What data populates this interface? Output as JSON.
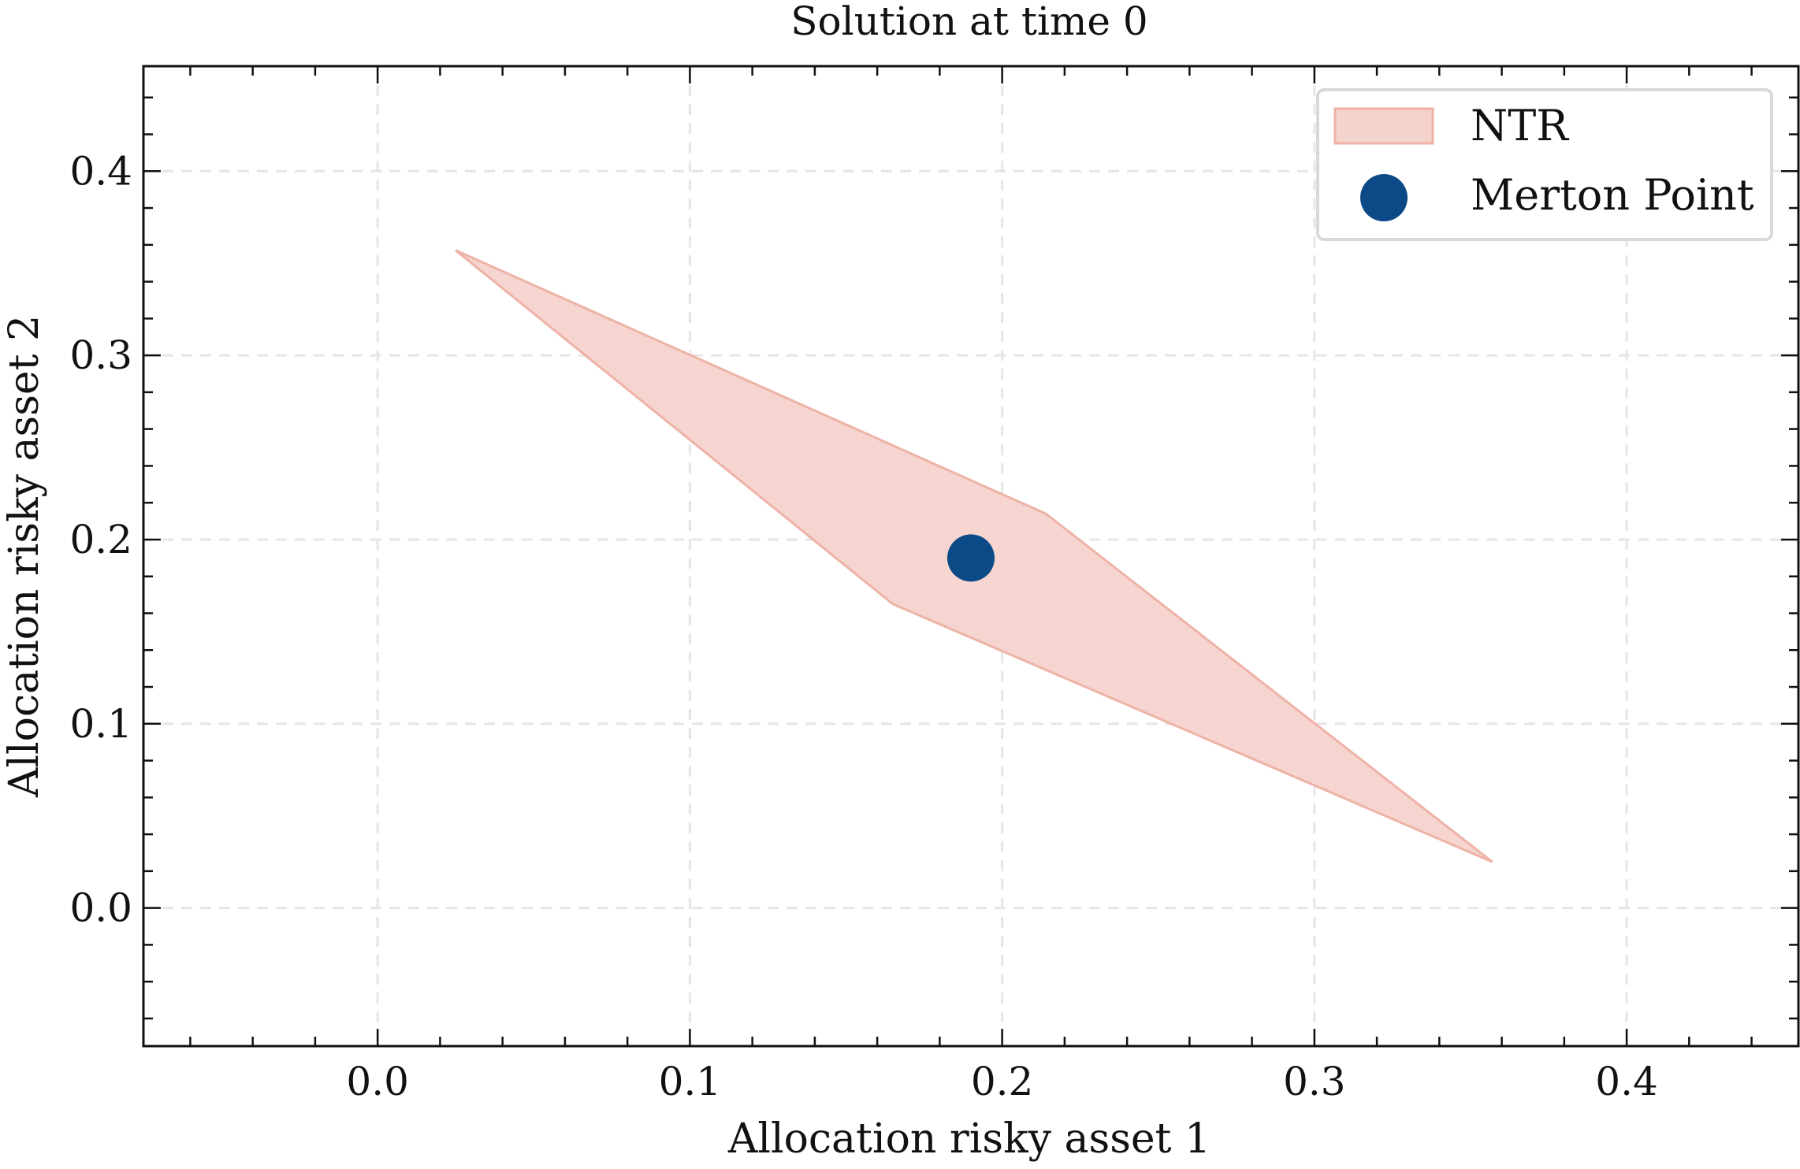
{
  "chart_data": {
    "type": "area",
    "title": "Solution at time 0",
    "xlabel": "Allocation risky asset 1",
    "ylabel": "Allocation risky asset 2",
    "xlim": [
      -0.075,
      0.455
    ],
    "ylim": [
      -0.075,
      0.457
    ],
    "x_ticks": [
      0.0,
      0.1,
      0.2,
      0.3,
      0.4
    ],
    "x_tick_labels": [
      "0.0",
      "0.1",
      "0.2",
      "0.3",
      "0.4"
    ],
    "y_ticks": [
      0.0,
      0.1,
      0.2,
      0.3,
      0.4
    ],
    "y_tick_labels": [
      "0.0",
      "0.1",
      "0.2",
      "0.3",
      "0.4"
    ],
    "minor_step": 0.02,
    "grid": true,
    "legend": {
      "placement": "top-right",
      "entries": [
        {
          "label": "NTR",
          "kind": "patch"
        },
        {
          "label": "Merton Point",
          "kind": "marker"
        }
      ]
    },
    "series": [
      {
        "name": "NTR",
        "kind": "polygon",
        "points": [
          [
            0.025,
            0.357
          ],
          [
            0.214,
            0.214
          ],
          [
            0.357,
            0.025
          ],
          [
            0.165,
            0.165
          ]
        ],
        "fill": "#f5d3cd",
        "stroke": "#eeb2a6"
      },
      {
        "name": "Merton Point",
        "kind": "point",
        "x": 0.19,
        "y": 0.19,
        "color": "#0b4a86"
      }
    ]
  }
}
